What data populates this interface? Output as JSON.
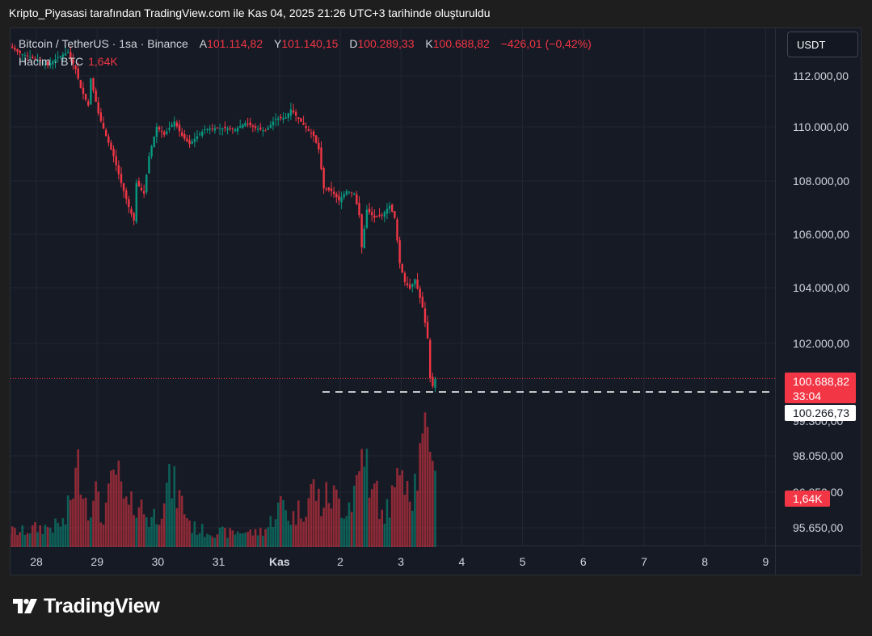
{
  "header": {
    "caption": "Kripto_Piyasasi tarafından TradingView.com ile Kas 04, 2025 21:26 UTC+3 tarihinde oluşturuldu"
  },
  "legend": {
    "symbol": "Bitcoin / TetherUS · 1sa · Binance",
    "open_label": "A",
    "open": "101.114,82",
    "high_label": "Y",
    "high": "101.140,15",
    "low_label": "D",
    "low": "100.289,33",
    "close_label": "K",
    "close": "100.688,82",
    "change": "−426,01 (−0,42%)",
    "volume_label": "Hacim · BTC",
    "volume": "1,64K"
  },
  "currency_button": "USDT",
  "brand": "TradingView",
  "colors": {
    "up": "#089981",
    "down": "#f23645",
    "background": "#161a25",
    "grid": "#232733"
  },
  "chart_data": {
    "type": "candlestick",
    "x_ticks": [
      "28",
      "29",
      "30",
      "31",
      "Kas",
      "2",
      "3",
      "4",
      "5",
      "6",
      "7",
      "8",
      "9"
    ],
    "price_ticks": [
      "112.000,00",
      "110.000,00",
      "108.000,00",
      "106.000,00",
      "104.000,00",
      "102.000,00"
    ],
    "volume_ticks": [
      "98.050,00",
      "96.850,00",
      "95.650,00"
    ],
    "partial_tick": "99.300,00",
    "price_ylim": [
      100000,
      113200
    ],
    "last_price": {
      "value": 100688.82,
      "label": "100.688,82",
      "countdown": "33:04"
    },
    "hline": {
      "value": 100266.73,
      "label": "100.266,73"
    },
    "volume_last_label": "1,64K",
    "price_path": [
      [
        -14,
        113300
      ],
      [
        -7,
        112850
      ],
      [
        0,
        112600
      ],
      [
        4,
        112400
      ],
      [
        8,
        112700
      ],
      [
        12,
        112900
      ],
      [
        15,
        112250
      ],
      [
        17,
        111550
      ],
      [
        20,
        110900
      ],
      [
        21,
        111900
      ],
      [
        24,
        110600
      ],
      [
        27,
        109750
      ],
      [
        30,
        109000
      ],
      [
        33,
        108000
      ],
      [
        36,
        107100
      ],
      [
        38,
        106600
      ],
      [
        39,
        108000
      ],
      [
        42,
        107600
      ],
      [
        44,
        109000
      ],
      [
        47,
        110100
      ],
      [
        50,
        109800
      ],
      [
        54,
        110300
      ],
      [
        57,
        109750
      ],
      [
        60,
        109450
      ],
      [
        63,
        109750
      ],
      [
        66,
        110000
      ],
      [
        70,
        110050
      ],
      [
        74,
        110050
      ],
      [
        78,
        110000
      ],
      [
        82,
        110250
      ],
      [
        86,
        110050
      ],
      [
        90,
        109950
      ],
      [
        94,
        110400
      ],
      [
        98,
        110450
      ],
      [
        100,
        110750
      ],
      [
        103,
        110400
      ],
      [
        106,
        110050
      ],
      [
        109,
        109750
      ],
      [
        111,
        109250
      ],
      [
        113,
        107800
      ],
      [
        116,
        107700
      ],
      [
        119,
        107350
      ],
      [
        122,
        107700
      ],
      [
        125,
        107600
      ],
      [
        127,
        106800
      ],
      [
        128,
        105600
      ],
      [
        130,
        107000
      ],
      [
        133,
        106700
      ],
      [
        136,
        106800
      ],
      [
        139,
        107150
      ],
      [
        141,
        106700
      ],
      [
        143,
        105000
      ],
      [
        145,
        104300
      ],
      [
        147,
        104050
      ],
      [
        149,
        104400
      ],
      [
        150,
        104050
      ],
      [
        152,
        103350
      ],
      [
        154,
        102200
      ],
      [
        155,
        100700
      ],
      [
        156,
        100400
      ],
      [
        157,
        100688.82
      ]
    ],
    "volume_path": [
      [
        -14,
        420
      ],
      [
        -7,
        380
      ],
      [
        0,
        480
      ],
      [
        7,
        520
      ],
      [
        11,
        640
      ],
      [
        14,
        1500
      ],
      [
        17,
        2150
      ],
      [
        20,
        800
      ],
      [
        22,
        1700
      ],
      [
        25,
        700
      ],
      [
        28,
        1200
      ],
      [
        31,
        1950
      ],
      [
        33,
        1300
      ],
      [
        36,
        900
      ],
      [
        39,
        1200
      ],
      [
        44,
        700
      ],
      [
        48,
        900
      ],
      [
        50,
        1400
      ],
      [
        53,
        1600
      ],
      [
        57,
        1100
      ],
      [
        61,
        500
      ],
      [
        66,
        400
      ],
      [
        71,
        380
      ],
      [
        76,
        350
      ],
      [
        81,
        400
      ],
      [
        86,
        350
      ],
      [
        91,
        500
      ],
      [
        94,
        900
      ],
      [
        97,
        1100
      ],
      [
        100,
        700
      ],
      [
        103,
        900
      ],
      [
        106,
        1100
      ],
      [
        109,
        1500
      ],
      [
        112,
        1050
      ],
      [
        115,
        1300
      ],
      [
        118,
        1200
      ],
      [
        121,
        1000
      ],
      [
        124,
        1200
      ],
      [
        127,
        1900
      ],
      [
        129,
        2900
      ],
      [
        131,
        1100
      ],
      [
        134,
        1500
      ],
      [
        136,
        700
      ],
      [
        139,
        1100
      ],
      [
        142,
        1500
      ],
      [
        144,
        2600
      ],
      [
        146,
        1800
      ],
      [
        148,
        1400
      ],
      [
        150,
        1900
      ],
      [
        152,
        2400
      ],
      [
        154,
        2500
      ],
      [
        156,
        3000
      ],
      [
        157,
        1640
      ]
    ]
  }
}
